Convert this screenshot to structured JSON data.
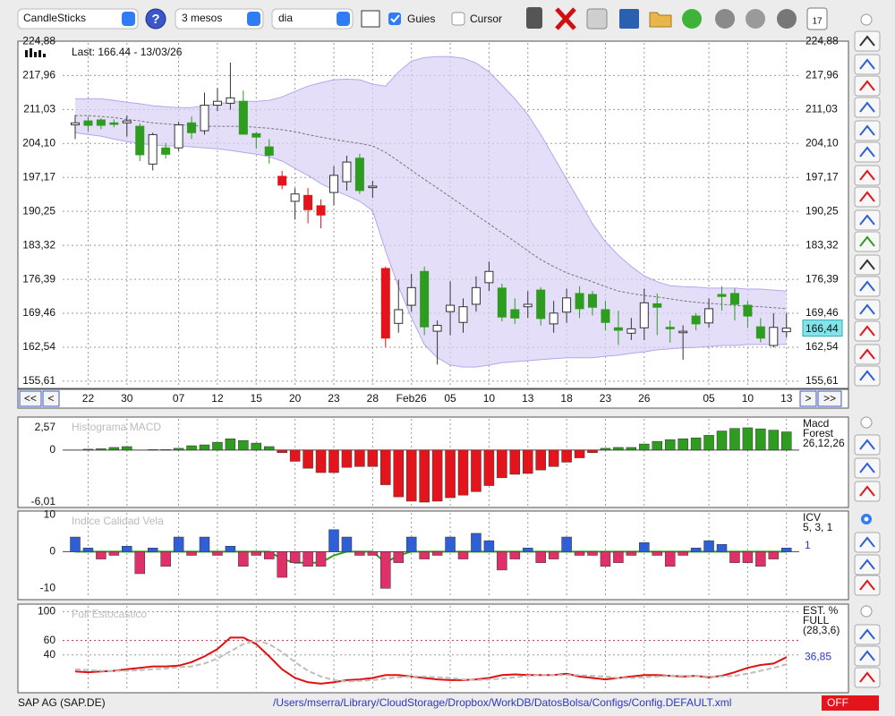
{
  "toolbar": {
    "chart_type": "CandleSticks",
    "help": "?",
    "period": "3 mesos",
    "interval": "dia",
    "guides": "Guies",
    "cursor": "Cursor",
    "calendar": "17"
  },
  "nav": {
    "first": "<<",
    "prev": "<",
    "next": ">",
    "last": ">>"
  },
  "footer": {
    "symbol": "SAP AG (SAP.DE)",
    "path": "/Users/mserra/Library/CloudStorage/Dropbox/WorkDB/DatosBolsa/Configs/Config.DEFAULT.xml",
    "status": "OFF"
  },
  "chart_data": [
    {
      "type": "candlestick",
      "title": "Last: 166.44 - 13/03/26",
      "categories": [
        null,
        "22",
        null,
        null,
        "30",
        null,
        null,
        null,
        "07",
        null,
        null,
        "12",
        null,
        null,
        "15",
        null,
        null,
        "20",
        null,
        null,
        "23",
        null,
        null,
        "28",
        null,
        null,
        "Feb26",
        null,
        null,
        "05",
        null,
        null,
        "10",
        null,
        null,
        "13",
        null,
        null,
        "18",
        null,
        null,
        "23",
        null,
        null,
        "26",
        null,
        null,
        null,
        null,
        "05",
        null,
        null,
        "10",
        null,
        null,
        "13"
      ],
      "open": [
        207.9,
        208.7,
        208.9,
        208.3,
        208.3,
        207.6,
        199.9,
        203.2,
        203.2,
        208.3,
        206.7,
        211.9,
        212.3,
        212.7,
        206.1,
        203.4,
        197.4,
        192.3,
        193.5,
        191.4,
        194.1,
        196.3,
        201.1,
        195.1,
        178.6,
        167.4,
        171.1,
        178.0,
        165.8,
        169.8,
        167.6,
        171.3,
        175.7,
        174.6,
        170.2,
        170.8,
        174.2,
        167.3,
        169.7,
        173.5,
        173.3,
        170.2,
        166.5,
        165.4,
        166.5,
        171.4,
        166.6,
        165.5,
        168.9,
        167.5,
        173.3,
        173.5,
        171.1,
        166.7,
        162.9,
        165.7
      ],
      "high": [
        209.9,
        209.6,
        209.2,
        209.0,
        209.8,
        208.2,
        206.3,
        204.2,
        208.5,
        209.6,
        214.5,
        215.4,
        220.6,
        214.9,
        206.5,
        205.0,
        198.5,
        195.0,
        195.0,
        192.7,
        199.5,
        201.6,
        202.0,
        196.5,
        179.0,
        176.3,
        177.5,
        179.0,
        168.0,
        176.0,
        172.5,
        177.0,
        180.0,
        175.5,
        172.5,
        174.0,
        174.8,
        172.0,
        174.5,
        175.0,
        174.0,
        172.0,
        170.0,
        168.5,
        174.5,
        173.5,
        168.0,
        167.0,
        169.5,
        172.5,
        175.0,
        174.5,
        172.0,
        168.5,
        169.5,
        169.5
      ],
      "low": [
        205.0,
        206.5,
        207.0,
        207.4,
        205.5,
        200.5,
        198.6,
        201.0,
        202.6,
        205.0,
        205.9,
        210.7,
        211.0,
        205.9,
        203.0,
        200.0,
        194.8,
        188.6,
        187.8,
        186.8,
        191.5,
        194.5,
        193.8,
        193.0,
        162.6,
        165.5,
        169.8,
        165.0,
        159.0,
        165.0,
        165.5,
        169.8,
        174.0,
        167.8,
        167.3,
        168.5,
        167.0,
        165.5,
        167.5,
        168.5,
        169.0,
        166.0,
        163.0,
        164.0,
        164.0,
        165.0,
        163.5,
        160.0,
        166.0,
        166.5,
        170.0,
        168.0,
        166.5,
        163.5,
        162.5,
        164.5
      ],
      "close": [
        208.3,
        207.8,
        207.8,
        208.0,
        208.7,
        201.8,
        205.9,
        201.9,
        207.9,
        206.3,
        211.9,
        212.7,
        213.4,
        206.0,
        205.4,
        201.7,
        195.6,
        193.8,
        190.6,
        189.5,
        197.6,
        200.3,
        194.5,
        195.4,
        164.4,
        170.2,
        174.7,
        166.7,
        167.0,
        171.1,
        170.8,
        174.7,
        178.0,
        168.7,
        168.5,
        171.3,
        168.4,
        169.5,
        172.6,
        170.4,
        170.7,
        167.6,
        166.0,
        166.3,
        171.6,
        170.7,
        166.3,
        165.8,
        167.3,
        170.4,
        172.9,
        171.3,
        168.9,
        164.4,
        166.6,
        166.44
      ],
      "candle_colors": [
        "#ffffff",
        "#2e9c1f",
        "#2e9c1f",
        "#2e9c1f",
        "#ffffff",
        "#2e9c1f",
        "#ffffff",
        "#2e9c1f",
        "#ffffff",
        "#2e9c1f",
        "#ffffff",
        "#ffffff",
        "#ffffff",
        "#2e9c1f",
        "#2e9c1f",
        "#2e9c1f",
        "#e3141c",
        "#ffffff",
        "#e3141c",
        "#e3141c",
        "#ffffff",
        "#ffffff",
        "#2e9c1f",
        "#ffffff",
        "#e3141c",
        "#ffffff",
        "#ffffff",
        "#2e9c1f",
        "#ffffff",
        "#ffffff",
        "#ffffff",
        "#ffffff",
        "#ffffff",
        "#2e9c1f",
        "#2e9c1f",
        "#ffffff",
        "#2e9c1f",
        "#ffffff",
        "#ffffff",
        "#2e9c1f",
        "#2e9c1f",
        "#2e9c1f",
        "#2e9c1f",
        "#ffffff",
        "#ffffff",
        "#2e9c1f",
        "#2e9c1f",
        "#ffffff",
        "#2e9c1f",
        "#ffffff",
        "#2e9c1f",
        "#2e9c1f",
        "#2e9c1f",
        "#2e9c1f",
        "#ffffff",
        "#ffffff"
      ],
      "bands": {
        "color": "#d9d0f6",
        "upper": [
          213.2,
          213.2,
          213.2,
          212.9,
          212.5,
          212.2,
          211.8,
          211.6,
          211.4,
          211.4,
          211.8,
          212.2,
          212.5,
          212.7,
          212.7,
          212.9,
          213.6,
          214.7,
          215.8,
          216.5,
          217.1,
          217.2,
          217.1,
          216.2,
          215.8,
          218.7,
          220.9,
          221.6,
          221.8,
          221.8,
          221.5,
          220.5,
          218.7,
          216.0,
          213.2,
          210.0,
          205.9,
          201.4,
          196.8,
          192.3,
          187.7,
          184.1,
          181.3,
          179.0,
          177.1,
          175.9,
          175.1,
          174.9,
          174.8,
          174.6,
          174.6,
          174.6,
          174.4,
          174.4,
          174.2,
          174.0
        ],
        "middle": [
          209.8,
          209.8,
          209.6,
          209.4,
          209.0,
          208.7,
          208.3,
          208.1,
          207.9,
          207.8,
          207.6,
          207.6,
          207.6,
          207.6,
          207.4,
          207.2,
          206.9,
          206.5,
          205.9,
          205.4,
          204.9,
          204.5,
          204.1,
          203.6,
          202.3,
          200.5,
          198.6,
          196.8,
          195.0,
          193.2,
          191.4,
          189.5,
          187.7,
          185.9,
          184.1,
          182.2,
          180.4,
          179.0,
          177.7,
          176.8,
          175.9,
          174.9,
          174.0,
          173.5,
          173.1,
          172.8,
          172.4,
          172.0,
          171.7,
          171.5,
          171.3,
          171.1,
          170.9,
          170.8,
          170.6,
          170.4
        ],
        "lower": [
          206.3,
          205.9,
          205.6,
          205.0,
          204.5,
          204.1,
          203.8,
          203.6,
          203.6,
          203.4,
          203.2,
          203.0,
          202.7,
          202.3,
          201.9,
          201.4,
          200.5,
          199.0,
          197.6,
          195.9,
          194.6,
          193.5,
          192.3,
          190.4,
          182.2,
          174.9,
          168.6,
          163.1,
          160.4,
          158.9,
          158.5,
          158.5,
          158.9,
          159.4,
          159.6,
          159.8,
          160.0,
          160.2,
          160.4,
          160.4,
          160.4,
          160.7,
          160.9,
          161.3,
          161.6,
          162.0,
          162.2,
          162.4,
          162.5,
          162.7,
          162.9,
          162.9,
          163.1,
          163.1,
          163.1,
          163.1
        ]
      },
      "last": {
        "value": 166.44,
        "label": "166,44"
      },
      "ylim": [
        154.5,
        224.6
      ],
      "yticks": [
        {
          "value": 155.61,
          "label": "155,61"
        },
        {
          "value": 162.54,
          "label": "162,54"
        },
        {
          "value": 169.46,
          "label": "169,46"
        },
        {
          "value": 176.39,
          "label": "176,39"
        },
        {
          "value": 183.32,
          "label": "183,32"
        },
        {
          "value": 190.25,
          "label": "190,25"
        },
        {
          "value": 197.17,
          "label": "197,17"
        },
        {
          "value": 204.1,
          "label": "204,10"
        },
        {
          "value": 211.03,
          "label": "211,03"
        },
        {
          "value": 217.96,
          "label": "217,96"
        },
        {
          "value": 224.88,
          "label": "224,88"
        }
      ],
      "grid": true
    },
    {
      "type": "bar",
      "title": "Histograma MACD",
      "params": [
        "Macd",
        "Forest",
        "26,12,26"
      ],
      "values": [
        0,
        0.1,
        0.15,
        0.3,
        0.4,
        0,
        0.05,
        0.05,
        0.2,
        0.5,
        0.6,
        0.9,
        1.3,
        1.1,
        0.8,
        0.4,
        -0.3,
        -1.3,
        -2.1,
        -2.6,
        -2.6,
        -2.0,
        -1.9,
        -1.9,
        -4.0,
        -5.4,
        -5.9,
        -6.01,
        -5.9,
        -5.5,
        -5.2,
        -4.8,
        -4.1,
        -3.2,
        -2.8,
        -2.7,
        -2.3,
        -1.9,
        -1.4,
        -0.9,
        -0.3,
        0.2,
        0.3,
        0.3,
        0.7,
        1.0,
        1.2,
        1.3,
        1.4,
        1.7,
        2.2,
        2.5,
        2.57,
        2.45,
        2.3,
        2.1
      ],
      "pos_color": "#2e9c1f",
      "neg_color": "#e3141c",
      "ylim": [
        -6.42,
        3.6
      ],
      "yticks": [
        {
          "value": 2.57,
          "label": "2,57"
        },
        0,
        {
          "value": -6.01,
          "label": "-6,01"
        }
      ],
      "grid": false
    },
    {
      "type": "bar",
      "title": "Indice Calidad Vela",
      "params": [
        "ICV",
        "5, 3, 1"
      ],
      "current": 1,
      "values": [
        4,
        1,
        -2,
        -1,
        1.5,
        -6,
        1,
        -4,
        4,
        -1,
        4,
        -1,
        1.5,
        -4,
        -1,
        -2,
        -7,
        -3,
        -4,
        -4,
        6,
        4,
        -1,
        -1,
        -10,
        -3,
        4,
        -2,
        -1,
        4,
        -2,
        5,
        3,
        -5,
        -2,
        1,
        -3,
        -2,
        4,
        -1,
        -1,
        -4,
        -3,
        -1,
        2.5,
        -1,
        -4,
        -1,
        1,
        3,
        2,
        -3,
        -3,
        -4,
        -2,
        1
      ],
      "line": [
        0,
        0,
        0,
        0,
        0,
        0,
        0,
        0,
        0,
        0,
        0,
        0,
        0,
        0,
        0,
        0,
        -2,
        -3,
        -3,
        -3,
        -1,
        0,
        0,
        0,
        -3,
        -1,
        0,
        0,
        0,
        0,
        0,
        0,
        0,
        0,
        0,
        0,
        0,
        0,
        0,
        0,
        0,
        0,
        0,
        0,
        0,
        0,
        0,
        0,
        0,
        0,
        0,
        0,
        0,
        0,
        0,
        0
      ],
      "line_color": "#2e9c1f",
      "pos_color": "#2f5fd6",
      "neg_color": "#e0306a",
      "ylim": [
        -12.6,
        10.6
      ],
      "yticks": [
        10,
        0,
        -10
      ],
      "grid": false
    },
    {
      "type": "line",
      "title": "Full Estocastico",
      "params": [
        "EST. %",
        "FULL",
        "(28,3,6)"
      ],
      "current": {
        "value": 36.85,
        "label": "36,85"
      },
      "series": [
        {
          "color": "#e01010",
          "dash": false,
          "values": [
            17,
            16,
            17,
            18,
            20,
            22,
            24,
            24,
            25,
            30,
            38,
            48,
            64,
            64,
            55,
            38,
            20,
            8,
            2,
            0,
            2,
            5,
            6,
            8,
            12,
            12,
            10,
            8,
            6,
            5,
            5,
            6,
            8,
            12,
            13,
            12,
            12,
            12,
            14,
            10,
            8,
            6,
            8,
            10,
            12,
            12,
            11,
            10,
            11,
            9,
            11,
            16,
            22,
            26,
            28,
            36.85
          ]
        },
        {
          "color": "#bdbdbd",
          "dash": true,
          "values": [
            20,
            19,
            18,
            18,
            18,
            19,
            20,
            21,
            23,
            24,
            28,
            35,
            45,
            55,
            60,
            55,
            44,
            30,
            18,
            10,
            5,
            3,
            4,
            5,
            7,
            9,
            10,
            10,
            9,
            8,
            6,
            5,
            6,
            7,
            9,
            11,
            12,
            12,
            12,
            12,
            11,
            10,
            8,
            8,
            9,
            10,
            11,
            11,
            11,
            10,
            10,
            11,
            14,
            18,
            22,
            27
          ]
        }
      ],
      "ylim": [
        -10,
        108
      ],
      "yticks": [
        100,
        60,
        40
      ],
      "grid": true
    }
  ]
}
